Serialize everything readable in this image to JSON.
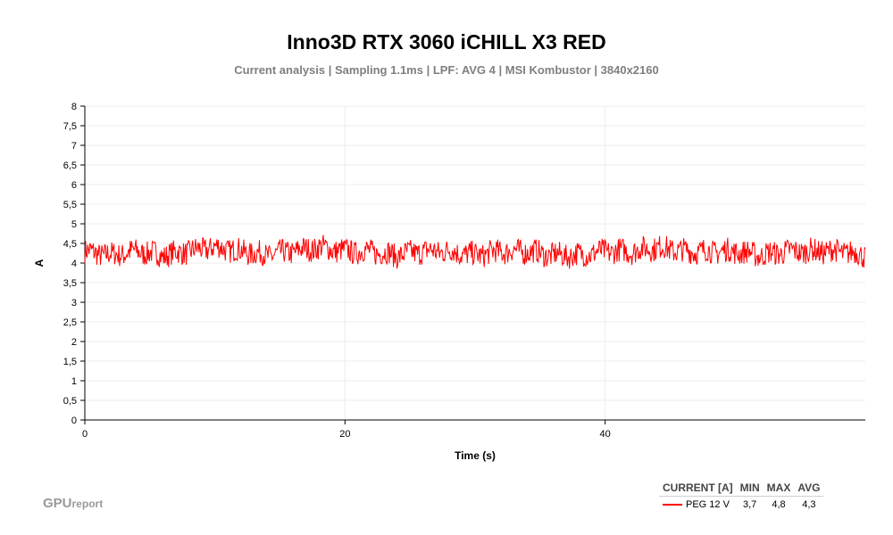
{
  "chart_data": {
    "type": "line",
    "title": "Inno3D RTX 3060 iCHILL X3 RED",
    "subtitle": "Current analysis | Sampling 1.1ms | LPF: AVG 4 |  MSI Kombustor | 3840x2160",
    "xlabel": "Time (s)",
    "ylabel": "A",
    "xlim": [
      0,
      60
    ],
    "ylim": [
      0,
      8
    ],
    "x_ticks": [
      "0",
      "20",
      "40"
    ],
    "y_ticks": [
      "0",
      "0,5",
      "1",
      "1,5",
      "2",
      "2,5",
      "3",
      "3,5",
      "4",
      "4,5",
      "5",
      "5,5",
      "6",
      "6,5",
      "7",
      "7,5",
      "8"
    ],
    "grid": true,
    "series": [
      {
        "name": "PEG 12 V",
        "color": "#ff0000",
        "summary": {
          "min": 3.7,
          "max": 4.8,
          "avg": 4.3
        },
        "x": [
          0,
          2,
          4,
          6,
          8,
          10,
          12,
          14,
          16,
          18,
          20,
          22,
          24,
          26,
          28,
          30,
          32,
          34,
          36,
          38,
          40,
          42,
          44,
          46,
          48,
          50,
          52,
          54,
          56,
          58,
          60
        ],
        "values": [
          4.3,
          4.2,
          4.3,
          4.2,
          4.3,
          4.4,
          4.3,
          4.2,
          4.3,
          4.4,
          4.3,
          4.3,
          4.2,
          4.3,
          4.3,
          4.2,
          4.3,
          4.3,
          4.2,
          4.2,
          4.3,
          4.3,
          4.4,
          4.3,
          4.3,
          4.3,
          4.2,
          4.3,
          4.3,
          4.3,
          4.2
        ]
      }
    ]
  },
  "legend": {
    "header": [
      "CURRENT [A]",
      "MIN",
      "MAX",
      "AVG"
    ],
    "rows": [
      {
        "name": "PEG 12 V",
        "min": "3,7",
        "max": "4,8",
        "avg": "4,3",
        "color": "#ff0000"
      }
    ]
  },
  "brand": {
    "main": "GPU",
    "suffix": "report"
  }
}
